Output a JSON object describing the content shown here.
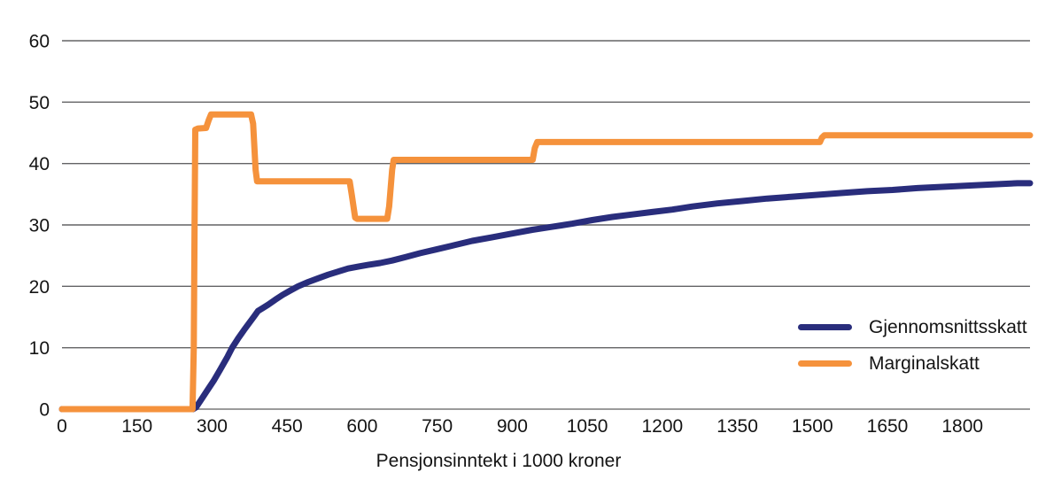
{
  "chart_data": {
    "type": "line",
    "title": "",
    "xlabel": "Pensjonsinntekt i 1000 kroner",
    "ylabel": "",
    "xlim": [
      0,
      1935
    ],
    "ylim": [
      0,
      60
    ],
    "xticks": [
      0,
      150,
      300,
      450,
      600,
      750,
      900,
      1050,
      1200,
      1350,
      1500,
      1650,
      1800
    ],
    "yticks": [
      0,
      10,
      20,
      30,
      40,
      50,
      60
    ],
    "grid": "horizontal-only",
    "legend_position": "right-middle-inside",
    "colors": {
      "average_tax": "#292d7c",
      "marginal_tax": "#f5923c",
      "gridline": "#636365",
      "baseline": "#9b9b9b",
      "text": "#141414"
    },
    "series": [
      {
        "name": "Gjennomsnittsskatt",
        "color": "#292d7c",
        "points": [
          [
            0,
            0
          ],
          [
            120,
            0
          ],
          [
            220,
            0
          ],
          [
            262,
            0
          ],
          [
            268,
            0.3
          ],
          [
            278,
            1.5
          ],
          [
            290,
            3.0
          ],
          [
            303,
            4.6
          ],
          [
            316,
            6.4
          ],
          [
            330,
            8.4
          ],
          [
            340,
            10.0
          ],
          [
            352,
            11.5
          ],
          [
            364,
            12.9
          ],
          [
            375,
            14.1
          ],
          [
            384,
            15.1
          ],
          [
            392,
            16.0
          ],
          [
            402,
            16.5
          ],
          [
            412,
            17.0
          ],
          [
            426,
            17.8
          ],
          [
            441,
            18.6
          ],
          [
            456,
            19.3
          ],
          [
            472,
            20.0
          ],
          [
            492,
            20.7
          ],
          [
            512,
            21.3
          ],
          [
            532,
            21.9
          ],
          [
            552,
            22.4
          ],
          [
            572,
            22.9
          ],
          [
            592,
            23.2
          ],
          [
            612,
            23.5
          ],
          [
            636,
            23.8
          ],
          [
            660,
            24.2
          ],
          [
            688,
            24.8
          ],
          [
            716,
            25.4
          ],
          [
            748,
            26.0
          ],
          [
            784,
            26.7
          ],
          [
            820,
            27.4
          ],
          [
            860,
            28.0
          ],
          [
            900,
            28.6
          ],
          [
            940,
            29.2
          ],
          [
            980,
            29.7
          ],
          [
            1020,
            30.2
          ],
          [
            1060,
            30.8
          ],
          [
            1100,
            31.3
          ],
          [
            1140,
            31.7
          ],
          [
            1180,
            32.1
          ],
          [
            1220,
            32.5
          ],
          [
            1260,
            33.0
          ],
          [
            1310,
            33.5
          ],
          [
            1360,
            33.9
          ],
          [
            1410,
            34.3
          ],
          [
            1460,
            34.6
          ],
          [
            1510,
            34.9
          ],
          [
            1560,
            35.2
          ],
          [
            1610,
            35.5
          ],
          [
            1660,
            35.7
          ],
          [
            1710,
            36.0
          ],
          [
            1760,
            36.2
          ],
          [
            1810,
            36.4
          ],
          [
            1860,
            36.6
          ],
          [
            1910,
            36.8
          ],
          [
            1935,
            36.8
          ]
        ]
      },
      {
        "name": "Marginalskatt",
        "color": "#f5923c",
        "points": [
          [
            0,
            0
          ],
          [
            261,
            0
          ],
          [
            263.5,
            10
          ],
          [
            265,
            30
          ],
          [
            266.5,
            45.5
          ],
          [
            272,
            45.7
          ],
          [
            288,
            45.8
          ],
          [
            293,
            47.0
          ],
          [
            298,
            48.0
          ],
          [
            378,
            48.0
          ],
          [
            382,
            46.5
          ],
          [
            387,
            39.0
          ],
          [
            390,
            37.1
          ],
          [
            575,
            37.1
          ],
          [
            579,
            35.0
          ],
          [
            586,
            31.2
          ],
          [
            590,
            31.0
          ],
          [
            650,
            31.0
          ],
          [
            654,
            33.0
          ],
          [
            660,
            39.0
          ],
          [
            663,
            40.6
          ],
          [
            941,
            40.6
          ],
          [
            945,
            42.5
          ],
          [
            950,
            43.5
          ],
          [
            1515,
            43.5
          ],
          [
            1519,
            44.2
          ],
          [
            1524,
            44.6
          ],
          [
            1935,
            44.6
          ]
        ]
      }
    ]
  },
  "legend": {
    "items": [
      {
        "label": "Gjennomsnittsskatt"
      },
      {
        "label": "Marginalskatt"
      }
    ]
  }
}
